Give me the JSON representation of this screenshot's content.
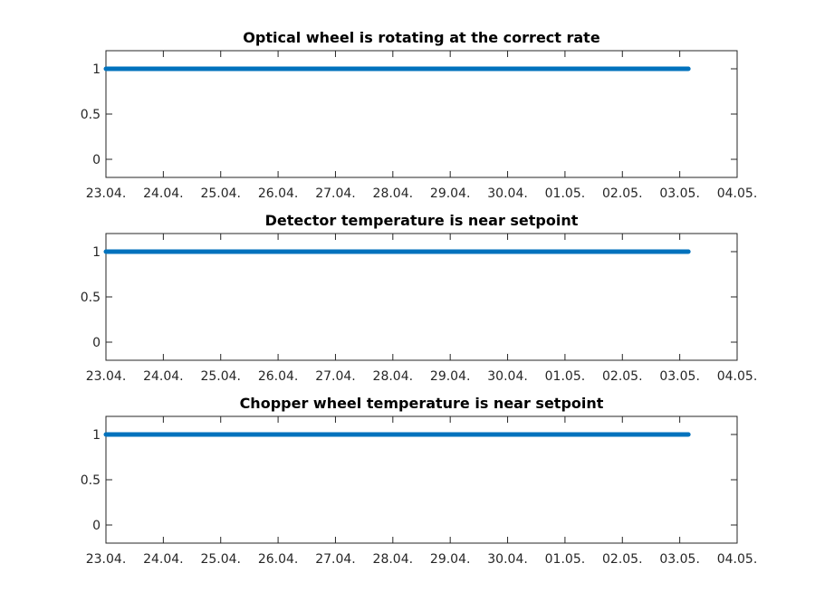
{
  "chart_data": [
    {
      "type": "line",
      "title": "Optical wheel is rotating at the correct rate",
      "xlabel": "",
      "ylabel": "",
      "x_tick_labels": [
        "23.04.",
        "24.04.",
        "25.04.",
        "26.04.",
        "27.04.",
        "28.04.",
        "29.04.",
        "30.04.",
        "01.05.",
        "02.05.",
        "03.05.",
        "04.05."
      ],
      "y_tick_labels": [
        "0",
        "0.5",
        "1"
      ],
      "y_ticks": [
        0,
        0.5,
        1
      ],
      "xlim": [
        "23.04.",
        "04.05."
      ],
      "ylim": [
        -0.2,
        1.2
      ],
      "series": [
        {
          "x_start": "23.04.",
          "x_end": "03.05.",
          "x_end_day_fraction": 0.15,
          "value": 1,
          "color": "#0072BD"
        }
      ],
      "grid": false
    },
    {
      "type": "line",
      "title": "Detector temperature is near setpoint",
      "xlabel": "",
      "ylabel": "",
      "x_tick_labels": [
        "23.04.",
        "24.04.",
        "25.04.",
        "26.04.",
        "27.04.",
        "28.04.",
        "29.04.",
        "30.04.",
        "01.05.",
        "02.05.",
        "03.05.",
        "04.05."
      ],
      "y_tick_labels": [
        "0",
        "0.5",
        "1"
      ],
      "y_ticks": [
        0,
        0.5,
        1
      ],
      "xlim": [
        "23.04.",
        "04.05."
      ],
      "ylim": [
        -0.2,
        1.2
      ],
      "series": [
        {
          "x_start": "23.04.",
          "x_end": "03.05.",
          "x_end_day_fraction": 0.15,
          "value": 1,
          "color": "#0072BD"
        }
      ],
      "grid": false
    },
    {
      "type": "line",
      "title": "Chopper wheel temperature is near setpoint",
      "xlabel": "",
      "ylabel": "",
      "x_tick_labels": [
        "23.04.",
        "24.04.",
        "25.04.",
        "26.04.",
        "27.04.",
        "28.04.",
        "29.04.",
        "30.04.",
        "01.05.",
        "02.05.",
        "03.05.",
        "04.05."
      ],
      "y_tick_labels": [
        "0",
        "0.5",
        "1"
      ],
      "y_ticks": [
        0,
        0.5,
        1
      ],
      "xlim": [
        "23.04.",
        "04.05."
      ],
      "ylim": [
        -0.2,
        1.2
      ],
      "series": [
        {
          "x_start": "23.04.",
          "x_end": "03.05.",
          "x_end_day_fraction": 0.15,
          "value": 1,
          "color": "#0072BD"
        }
      ],
      "grid": false
    }
  ]
}
